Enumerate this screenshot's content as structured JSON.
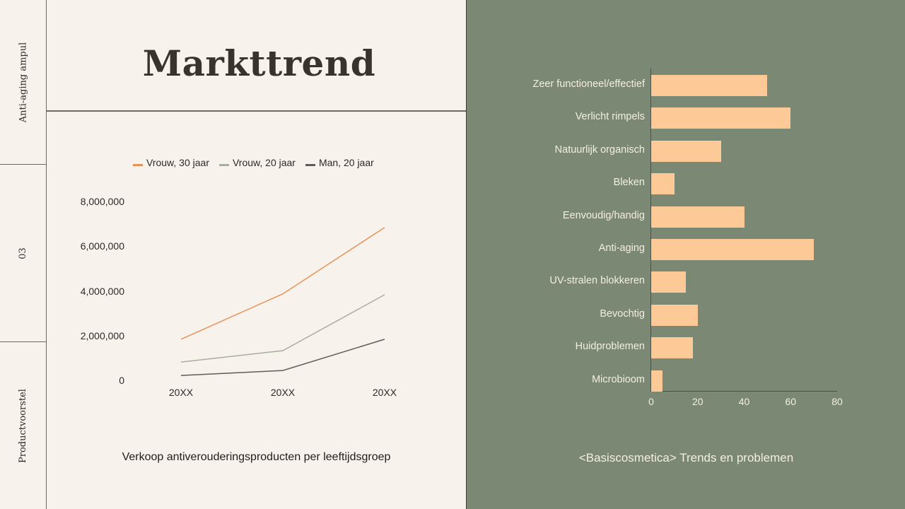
{
  "sidebar": {
    "items": [
      {
        "label": "Anti-aging ampul"
      },
      {
        "label": "03"
      },
      {
        "label": "Productvoorstel"
      }
    ]
  },
  "header": {
    "title": "Markttrend"
  },
  "colors": {
    "background_left": "#f7f3ec",
    "background_right": "#7b8873",
    "bar_fill": "#fdca97",
    "series_vrouw30": "#e8935a",
    "series_vrouw20": "#a8ae9c",
    "series_man20": "#5f5d57"
  },
  "chart_data": [
    {
      "type": "line",
      "title": "Verkoop antiverouderingsproducten per leeftijdsgroep",
      "xlabel": "",
      "ylabel": "",
      "categories": [
        "20XX",
        "20XX",
        "20XX"
      ],
      "yticks": [
        "0",
        "2,000,000",
        "4,000,000",
        "6,000,000",
        "8,000,000"
      ],
      "ylim": [
        0,
        8000000
      ],
      "grid": false,
      "legend_position": "top",
      "series": [
        {
          "name": "Vrouw, 30 jaar",
          "color": "#e8935a",
          "values": [
            1870000,
            3900000,
            6870000
          ]
        },
        {
          "name": "Vrouw, 20 jaar",
          "color": "#a8ae9c",
          "values": [
            850000,
            1360000,
            3860000
          ]
        },
        {
          "name": "Man, 20 jaar",
          "color": "#5f5d57",
          "values": [
            250000,
            470000,
            1870000
          ]
        }
      ]
    },
    {
      "type": "bar",
      "orientation": "horizontal",
      "title": "<Basiscosmetica> Trends en problemen",
      "xlabel": "",
      "ylabel": "",
      "categories": [
        "Zeer functioneel/effectief",
        "Verlicht rimpels",
        "Natuurlijk organisch",
        "Bleken",
        "Eenvoudig/handig",
        "Anti-aging",
        "UV-stralen blokkeren",
        "Bevochtig",
        "Huidproblemen",
        "Microbioom"
      ],
      "values": [
        50,
        60,
        30,
        10,
        40,
        70,
        15,
        20,
        18,
        5
      ],
      "xticks": [
        "0",
        "20",
        "40",
        "60",
        "80"
      ],
      "xlim": [
        0,
        80
      ],
      "grid": false
    }
  ]
}
